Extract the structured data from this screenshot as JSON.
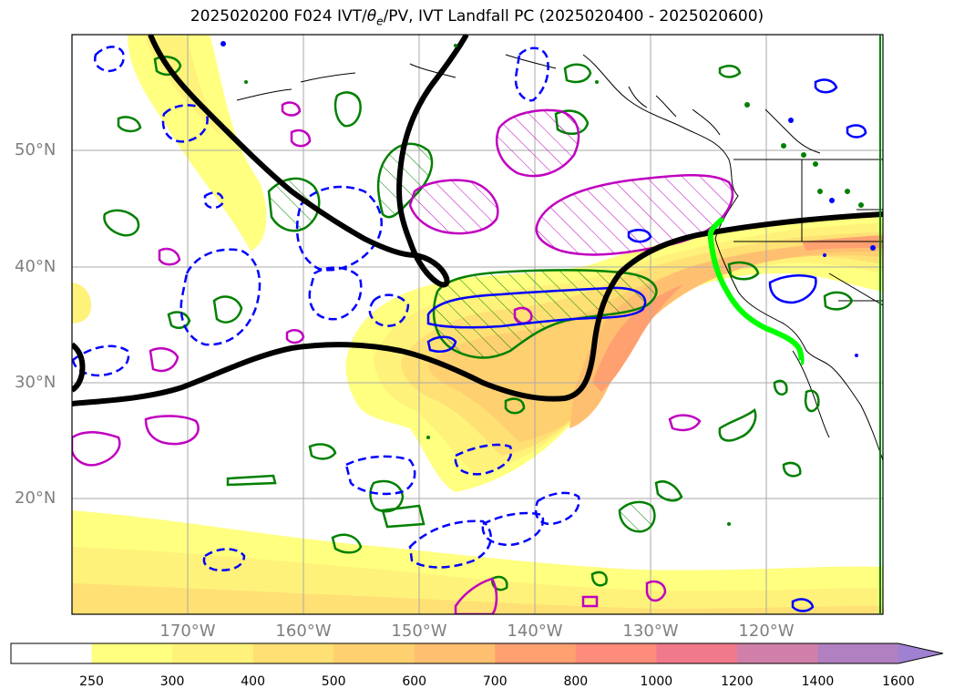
{
  "title": {
    "prefix": "2025020200 F024 IVT/",
    "theta": "θ",
    "theta_sub": "e",
    "suffix": "/PV, IVT Landfall PC (2025020400 - 2025020600)"
  },
  "axes": {
    "lat_labels": [
      "50°N",
      "40°N",
      "30°N",
      "20°N"
    ],
    "lon_labels": [
      "170°W",
      "160°W",
      "150°W",
      "140°W",
      "130°W",
      "120°W"
    ]
  },
  "colorbar": {
    "ticks": [
      "250",
      "300",
      "400",
      "500",
      "600",
      "700",
      "800",
      "1000",
      "1200",
      "1400",
      "1600"
    ],
    "colors": [
      "#ffffff",
      "#ffff80",
      "#fff27a",
      "#ffe074",
      "#ffd070",
      "#ffbf70",
      "#ffa070",
      "#ff8c7a",
      "#f07a8c",
      "#d080a8",
      "#b080c0",
      "#a080d0"
    ],
    "extend": "max"
  },
  "legend_colors": {
    "pv_pos": "#0000ff",
    "pv_neg": "#0000ff",
    "theta_green": "#008000",
    "magenta": "#c000c0",
    "black_contour": "#000000",
    "landfall_line": "#00ff00"
  }
}
